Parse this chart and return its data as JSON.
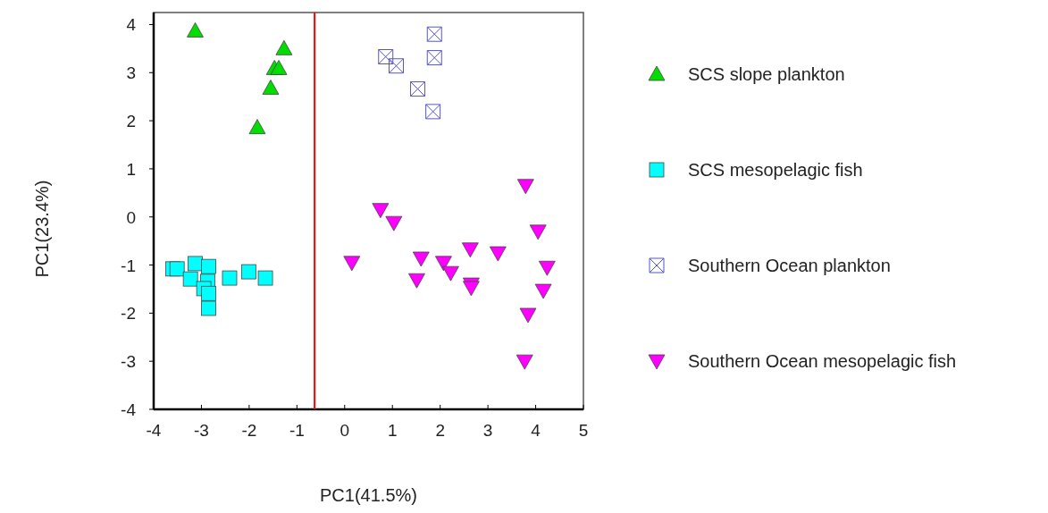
{
  "chart_data": {
    "type": "scatter",
    "xlabel": "PC1(41.5%)",
    "ylabel": "PC1(23.4%)",
    "xlim": [
      -4,
      5
    ],
    "ylim": [
      -4,
      4.25
    ],
    "xticks": [
      -4,
      -3,
      -2,
      -1,
      0,
      1,
      2,
      3,
      4,
      5
    ],
    "yticks": [
      -4,
      -3,
      -2,
      -1,
      0,
      1,
      2,
      3,
      4
    ],
    "legend": "right",
    "grid": false,
    "ref_lines": [
      {
        "axis": "x",
        "value": -0.63,
        "color": "#ff0000"
      }
    ],
    "series": [
      {
        "name": "SCS slope plankton",
        "color": "#00dd00",
        "marker": "triangle",
        "x": [
          -3.13,
          -1.27,
          -1.47,
          -1.38,
          -1.55,
          -1.83
        ],
        "values": [
          3.87,
          3.5,
          3.09,
          3.09,
          2.68,
          1.86
        ]
      },
      {
        "name": "SCS mesopelagic fish",
        "color": "#00ffff",
        "marker": "square",
        "x": [
          -3.6,
          -3.51,
          -3.13,
          -2.85,
          -3.23,
          -2.87,
          -2.95,
          -2.85,
          -2.85,
          -2.41,
          -2.01,
          -1.66
        ],
        "values": [
          -1.08,
          -1.08,
          -0.97,
          -1.03,
          -1.29,
          -1.34,
          -1.49,
          -1.59,
          -1.9,
          -1.27,
          -1.14,
          -1.27
        ]
      },
      {
        "name": "Southern Ocean plankton",
        "color": "#5555cc",
        "marker": "cross",
        "x": [
          1.88,
          1.88,
          0.86,
          1.08,
          1.53,
          1.85
        ],
        "values": [
          3.8,
          3.31,
          3.33,
          3.14,
          2.66,
          2.19
        ]
      },
      {
        "name": "Southern Ocean mesopelagic fish",
        "color": "#ff00ff",
        "marker": "triangle-down",
        "x": [
          3.79,
          0.75,
          1.03,
          4.05,
          0.15,
          1.6,
          2.07,
          2.22,
          2.63,
          3.21,
          4.24,
          1.51,
          2.65,
          2.65,
          4.16,
          3.84,
          3.77
        ],
        "values": [
          0.65,
          0.15,
          -0.12,
          -0.3,
          -0.95,
          -0.86,
          -0.95,
          -1.16,
          -0.67,
          -0.75,
          -1.05,
          -1.31,
          -1.4,
          -1.47,
          -1.53,
          -2.03,
          -3.0
        ]
      }
    ]
  }
}
